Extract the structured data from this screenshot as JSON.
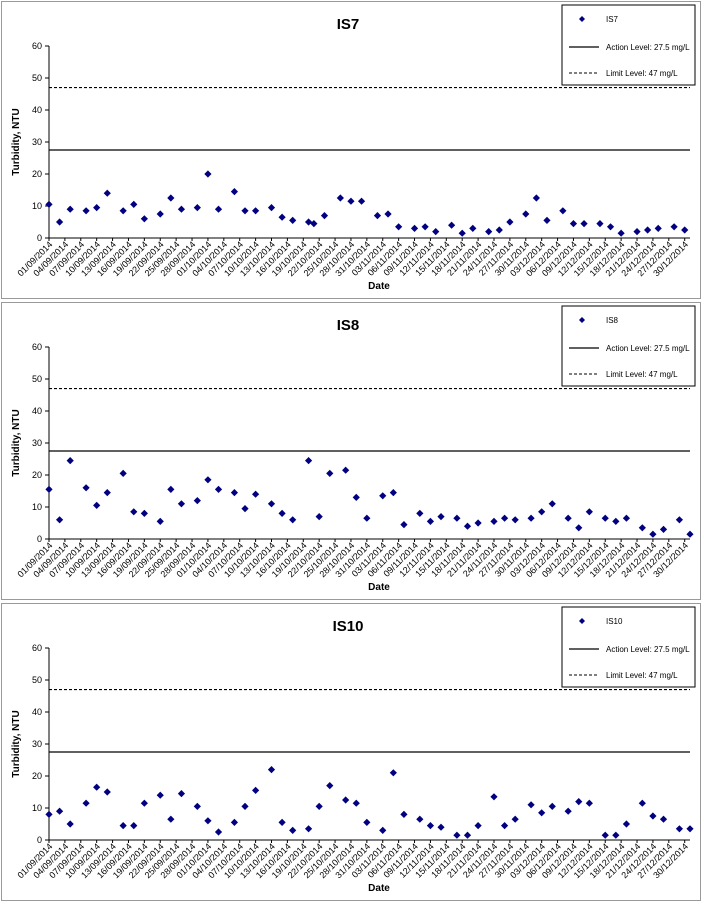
{
  "colors": {
    "marker": "#000080",
    "action_line": "#000000",
    "limit_line": "#000000"
  },
  "chart_data": [
    {
      "type": "scatter",
      "title": "IS7",
      "xlabel": "Date",
      "ylabel": "Turbidity, NTU",
      "ylim": [
        0,
        60
      ],
      "yticks": [
        0,
        10,
        20,
        30,
        40,
        50,
        60
      ],
      "xlim": [
        "01/09/2014",
        "31/12/2014"
      ],
      "xtick_labels": [
        "01/09/2014",
        "04/09/2014",
        "07/09/2014",
        "10/09/2014",
        "13/09/2014",
        "16/09/2014",
        "19/09/2014",
        "22/09/2014",
        "25/09/2014",
        "28/09/2014",
        "01/10/2014",
        "04/10/2014",
        "07/10/2014",
        "10/10/2014",
        "13/10/2014",
        "16/10/2014",
        "19/10/2014",
        "22/10/2014",
        "25/10/2014",
        "28/10/2014",
        "31/10/2014",
        "03/11/2014",
        "06/11/2014",
        "09/11/2014",
        "12/11/2014",
        "15/11/2014",
        "18/11/2014",
        "21/11/2014",
        "24/11/2014",
        "27/11/2014",
        "30/11/2014",
        "03/12/2014",
        "06/12/2014",
        "09/12/2014",
        "12/12/2014",
        "15/12/2014",
        "18/12/2014",
        "21/12/2014",
        "24/12/2014",
        "27/12/2014",
        "30/12/2014"
      ],
      "legend_position": "top-right",
      "legend": [
        "IS7",
        "Action Level: 27.5 mg/L",
        "Limit Level: 47 mg/L"
      ],
      "action_level": 27.5,
      "limit_level": 47,
      "series": [
        {
          "name": "IS7",
          "points": [
            [
              "01/09/2014",
              10.5
            ],
            [
              "03/09/2014",
              5
            ],
            [
              "05/09/2014",
              9
            ],
            [
              "08/09/2014",
              8.5
            ],
            [
              "10/09/2014",
              9.5
            ],
            [
              "12/09/2014",
              14
            ],
            [
              "15/09/2014",
              8.5
            ],
            [
              "17/09/2014",
              10.5
            ],
            [
              "19/09/2014",
              6
            ],
            [
              "22/09/2014",
              7.5
            ],
            [
              "24/09/2014",
              12.5
            ],
            [
              "26/09/2014",
              9
            ],
            [
              "29/09/2014",
              9.5
            ],
            [
              "01/10/2014",
              20
            ],
            [
              "03/10/2014",
              9
            ],
            [
              "06/10/2014",
              14.5
            ],
            [
              "08/10/2014",
              8.5
            ],
            [
              "10/10/2014",
              8.5
            ],
            [
              "13/10/2014",
              9.5
            ],
            [
              "15/10/2014",
              6.5
            ],
            [
              "17/10/2014",
              5.5
            ],
            [
              "20/10/2014",
              5
            ],
            [
              "21/10/2014",
              4.5
            ],
            [
              "23/10/2014",
              7
            ],
            [
              "26/10/2014",
              12.5
            ],
            [
              "28/10/2014",
              11.5
            ],
            [
              "30/10/2014",
              11.5
            ],
            [
              "02/11/2014",
              7
            ],
            [
              "04/11/2014",
              7.5
            ],
            [
              "06/11/2014",
              3.5
            ],
            [
              "09/11/2014",
              3
            ],
            [
              "11/11/2014",
              3.5
            ],
            [
              "13/11/2014",
              2
            ],
            [
              "16/11/2014",
              4
            ],
            [
              "18/11/2014",
              1.5
            ],
            [
              "20/11/2014",
              3
            ],
            [
              "23/11/2014",
              2
            ],
            [
              "25/11/2014",
              2.5
            ],
            [
              "27/11/2014",
              5
            ],
            [
              "30/11/2014",
              7.5
            ],
            [
              "02/12/2014",
              12.5
            ],
            [
              "04/12/2014",
              5.5
            ],
            [
              "07/12/2014",
              8.5
            ],
            [
              "09/12/2014",
              4.5
            ],
            [
              "11/12/2014",
              4.5
            ],
            [
              "14/12/2014",
              4.5
            ],
            [
              "16/12/2014",
              3.5
            ],
            [
              "18/12/2014",
              1.5
            ],
            [
              "21/12/2014",
              2
            ],
            [
              "23/12/2014",
              2.5
            ],
            [
              "25/12/2014",
              3
            ],
            [
              "28/12/2014",
              3.5
            ],
            [
              "30/12/2014",
              2.5
            ]
          ]
        }
      ]
    },
    {
      "type": "scatter",
      "title": "IS8",
      "xlabel": "Date",
      "ylabel": "Turbidity, NTU",
      "ylim": [
        0,
        60
      ],
      "yticks": [
        0,
        10,
        20,
        30,
        40,
        50,
        60
      ],
      "xlim": [
        "01/09/2014",
        "31/12/2014"
      ],
      "xtick_labels": [
        "01/09/2014",
        "04/09/2014",
        "07/09/2014",
        "10/09/2014",
        "13/09/2014",
        "16/09/2014",
        "19/09/2014",
        "22/09/2014",
        "25/09/2014",
        "28/09/2014",
        "01/10/2014",
        "04/10/2014",
        "07/10/2014",
        "10/10/2014",
        "13/10/2014",
        "16/10/2014",
        "19/10/2014",
        "22/10/2014",
        "25/10/2014",
        "28/10/2014",
        "31/10/2014",
        "03/11/2014",
        "06/11/2014",
        "09/11/2014",
        "12/11/2014",
        "15/11/2014",
        "18/11/2014",
        "21/11/2014",
        "24/11/2014",
        "27/11/2014",
        "30/11/2014",
        "03/12/2014",
        "06/12/2014",
        "09/12/2014",
        "12/12/2014",
        "15/12/2014",
        "18/12/2014",
        "21/12/2014",
        "24/12/2014",
        "27/12/2014",
        "30/12/2014"
      ],
      "legend_position": "top-right",
      "legend": [
        "IS8",
        "Action Level: 27.5 mg/L",
        "Limit Level: 47 mg/L"
      ],
      "action_level": 27.5,
      "limit_level": 47,
      "series": [
        {
          "name": "IS8",
          "points": [
            [
              "01/09/2014",
              15.5
            ],
            [
              "03/09/2014",
              6
            ],
            [
              "05/09/2014",
              24.5
            ],
            [
              "08/09/2014",
              16
            ],
            [
              "10/09/2014",
              10.5
            ],
            [
              "12/09/2014",
              14.5
            ],
            [
              "15/09/2014",
              20.5
            ],
            [
              "17/09/2014",
              8.5
            ],
            [
              "19/09/2014",
              8
            ],
            [
              "22/09/2014",
              5.5
            ],
            [
              "24/09/2014",
              15.5
            ],
            [
              "26/09/2014",
              11
            ],
            [
              "29/09/2014",
              12
            ],
            [
              "01/10/2014",
              18.5
            ],
            [
              "03/10/2014",
              15.5
            ],
            [
              "06/10/2014",
              14.5
            ],
            [
              "08/10/2014",
              9.5
            ],
            [
              "10/10/2014",
              14
            ],
            [
              "13/10/2014",
              11
            ],
            [
              "15/10/2014",
              8
            ],
            [
              "17/10/2014",
              6
            ],
            [
              "20/10/2014",
              24.5
            ],
            [
              "22/10/2014",
              7
            ],
            [
              "24/10/2014",
              20.5
            ],
            [
              "27/10/2014",
              21.5
            ],
            [
              "29/10/2014",
              13
            ],
            [
              "31/10/2014",
              6.5
            ],
            [
              "03/11/2014",
              13.5
            ],
            [
              "05/11/2014",
              14.5
            ],
            [
              "07/11/2014",
              4.5
            ],
            [
              "10/11/2014",
              8
            ],
            [
              "12/11/2014",
              5.5
            ],
            [
              "14/11/2014",
              7
            ],
            [
              "17/11/2014",
              6.5
            ],
            [
              "19/11/2014",
              4
            ],
            [
              "21/11/2014",
              5
            ],
            [
              "24/11/2014",
              5.5
            ],
            [
              "26/11/2014",
              6.5
            ],
            [
              "28/11/2014",
              6
            ],
            [
              "01/12/2014",
              6.5
            ],
            [
              "03/12/2014",
              8.5
            ],
            [
              "05/12/2014",
              11
            ],
            [
              "08/12/2014",
              6.5
            ],
            [
              "10/12/2014",
              3.5
            ],
            [
              "12/12/2014",
              8.5
            ],
            [
              "15/12/2014",
              6.5
            ],
            [
              "17/12/2014",
              5.5
            ],
            [
              "19/12/2014",
              6.5
            ],
            [
              "22/12/2014",
              3.5
            ],
            [
              "24/12/2014",
              1.5
            ],
            [
              "26/12/2014",
              3
            ],
            [
              "29/12/2014",
              6
            ],
            [
              "31/12/2014",
              1.5
            ]
          ]
        }
      ]
    },
    {
      "type": "scatter",
      "title": "IS10",
      "xlabel": "Date",
      "ylabel": "Turbidity, NTU",
      "ylim": [
        0,
        60
      ],
      "yticks": [
        0,
        10,
        20,
        30,
        40,
        50,
        60
      ],
      "xlim": [
        "01/09/2014",
        "31/12/2014"
      ],
      "xtick_labels": [
        "01/09/2014",
        "04/09/2014",
        "07/09/2014",
        "10/09/2014",
        "13/09/2014",
        "16/09/2014",
        "19/09/2014",
        "22/09/2014",
        "25/09/2014",
        "28/09/2014",
        "01/10/2014",
        "04/10/2014",
        "07/10/2014",
        "10/10/2014",
        "13/10/2014",
        "16/10/2014",
        "19/10/2014",
        "22/10/2014",
        "25/10/2014",
        "28/10/2014",
        "31/10/2014",
        "03/11/2014",
        "06/11/2014",
        "09/11/2014",
        "12/11/2014",
        "15/11/2014",
        "18/11/2014",
        "21/11/2014",
        "24/11/2014",
        "27/11/2014",
        "30/11/2014",
        "03/12/2014",
        "06/12/2014",
        "09/12/2014",
        "12/12/2014",
        "15/12/2014",
        "18/12/2014",
        "21/12/2014",
        "24/12/2014",
        "27/12/2014",
        "30/12/2014"
      ],
      "legend_position": "top-right",
      "legend": [
        "IS10",
        "Action Level: 27.5 mg/L",
        "Limit Level: 47 mg/L"
      ],
      "action_level": 27.5,
      "limit_level": 47,
      "series": [
        {
          "name": "IS10",
          "points": [
            [
              "01/09/2014",
              8
            ],
            [
              "03/09/2014",
              9
            ],
            [
              "05/09/2014",
              5
            ],
            [
              "08/09/2014",
              11.5
            ],
            [
              "10/09/2014",
              16.5
            ],
            [
              "12/09/2014",
              15
            ],
            [
              "15/09/2014",
              4.5
            ],
            [
              "17/09/2014",
              4.5
            ],
            [
              "19/09/2014",
              11.5
            ],
            [
              "22/09/2014",
              14
            ],
            [
              "24/09/2014",
              6.5
            ],
            [
              "26/09/2014",
              14.5
            ],
            [
              "29/09/2014",
              10.5
            ],
            [
              "01/10/2014",
              6
            ],
            [
              "03/10/2014",
              2.5
            ],
            [
              "06/10/2014",
              5.5
            ],
            [
              "08/10/2014",
              10.5
            ],
            [
              "10/10/2014",
              15.5
            ],
            [
              "13/10/2014",
              22
            ],
            [
              "15/10/2014",
              5.5
            ],
            [
              "17/10/2014",
              3
            ],
            [
              "20/10/2014",
              3.5
            ],
            [
              "22/10/2014",
              10.5
            ],
            [
              "24/10/2014",
              17
            ],
            [
              "27/10/2014",
              12.5
            ],
            [
              "29/10/2014",
              11.5
            ],
            [
              "31/10/2014",
              5.5
            ],
            [
              "03/11/2014",
              3
            ],
            [
              "05/11/2014",
              21
            ],
            [
              "07/11/2014",
              8
            ],
            [
              "10/11/2014",
              6.5
            ],
            [
              "12/11/2014",
              4.5
            ],
            [
              "14/11/2014",
              4
            ],
            [
              "17/11/2014",
              1.5
            ],
            [
              "19/11/2014",
              1.5
            ],
            [
              "21/11/2014",
              4.5
            ],
            [
              "24/11/2014",
              13.5
            ],
            [
              "26/11/2014",
              4.5
            ],
            [
              "28/11/2014",
              6.5
            ],
            [
              "01/12/2014",
              11
            ],
            [
              "03/12/2014",
              8.5
            ],
            [
              "05/12/2014",
              10.5
            ],
            [
              "08/12/2014",
              9
            ],
            [
              "10/12/2014",
              12
            ],
            [
              "12/12/2014",
              11.5
            ],
            [
              "15/12/2014",
              1.5
            ],
            [
              "17/12/2014",
              1.5
            ],
            [
              "19/12/2014",
              5
            ],
            [
              "22/12/2014",
              11.5
            ],
            [
              "24/12/2014",
              7.5
            ],
            [
              "26/12/2014",
              6.5
            ],
            [
              "29/12/2014",
              3.5
            ],
            [
              "31/12/2014",
              3.5
            ]
          ]
        }
      ]
    }
  ]
}
